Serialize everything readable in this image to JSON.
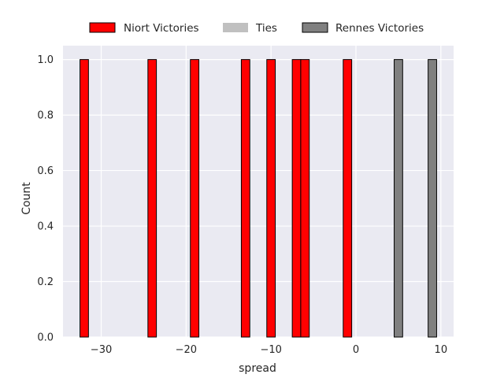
{
  "chart_data": {
    "type": "bar",
    "xlabel": "spread",
    "ylabel": "Count",
    "xlim": [
      -34.5,
      11.5
    ],
    "ylim": [
      0,
      1.05
    ],
    "xticks": [
      -30,
      -20,
      -10,
      0,
      10
    ],
    "xtick_labels": [
      "−30",
      "−20",
      "−10",
      "0",
      "10"
    ],
    "yticks": [
      0.0,
      0.2,
      0.4,
      0.6,
      0.8,
      1.0
    ],
    "ytick_labels": [
      "0.0",
      "0.2",
      "0.4",
      "0.6",
      "0.8",
      "1.0"
    ],
    "grid": true,
    "legend_position": "top-center",
    "bin_width": 1,
    "series": [
      {
        "name": "Niort Victories",
        "color": "#ff0000",
        "edge": "#000000",
        "x": [
          -32,
          -24,
          -19,
          -13,
          -10,
          -7,
          -6,
          -1
        ],
        "values": [
          1,
          1,
          1,
          1,
          1,
          1,
          1,
          1
        ]
      },
      {
        "name": "Ties",
        "color": "#c0c0c0",
        "edge": "none",
        "x": [],
        "values": []
      },
      {
        "name": "Rennes Victories",
        "color": "#808080",
        "edge": "#000000",
        "x": [
          5,
          9
        ],
        "values": [
          1,
          1
        ]
      }
    ]
  }
}
